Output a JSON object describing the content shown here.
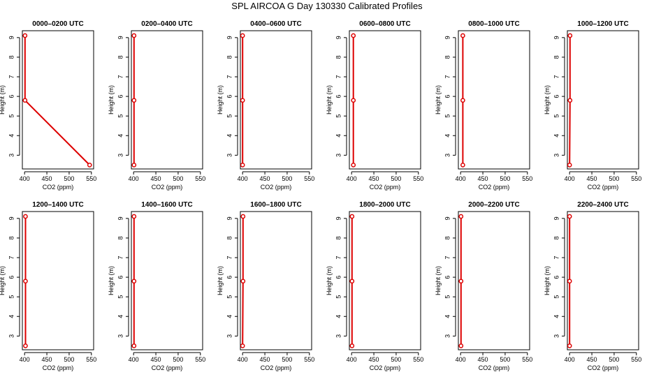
{
  "title": "SPL AIRCOA G  Day 130330  Calibrated Profiles",
  "colors": {
    "line": "#dd0000",
    "axis": "#000000"
  },
  "chart_data": [
    {
      "type": "line",
      "title": "0000–0200 UTC",
      "xlabel": "CO2 (ppm)",
      "ylabel": "Height (m)",
      "xlim": [
        395,
        555
      ],
      "ylim": [
        2.3,
        9.35
      ],
      "xticks": [
        400,
        450,
        500,
        550
      ],
      "yticks": [
        3,
        4,
        5,
        6,
        7,
        8,
        9
      ],
      "series": [
        {
          "x": [
            546,
            401,
            401
          ],
          "y": [
            2.5,
            5.8,
            9.1
          ]
        }
      ]
    },
    {
      "type": "line",
      "title": "0200–0400 UTC",
      "xlabel": "CO2 (ppm)",
      "ylabel": "Height (m)",
      "xlim": [
        395,
        555
      ],
      "ylim": [
        2.3,
        9.35
      ],
      "xticks": [
        400,
        450,
        500,
        550
      ],
      "yticks": [
        3,
        4,
        5,
        6,
        7,
        8,
        9
      ],
      "series": [
        {
          "x": [
            401,
            401,
            401
          ],
          "y": [
            2.5,
            5.8,
            9.1
          ]
        }
      ]
    },
    {
      "type": "line",
      "title": "0400–0600 UTC",
      "xlabel": "CO2 (ppm)",
      "ylabel": "Height (m)",
      "xlim": [
        395,
        555
      ],
      "ylim": [
        2.3,
        9.35
      ],
      "xticks": [
        400,
        450,
        500,
        550
      ],
      "yticks": [
        3,
        4,
        5,
        6,
        7,
        8,
        9
      ],
      "series": [
        {
          "x": [
            400,
            400,
            400
          ],
          "y": [
            2.5,
            5.8,
            9.1
          ]
        }
      ]
    },
    {
      "type": "line",
      "title": "0600–0800 UTC",
      "xlabel": "CO2 (ppm)",
      "ylabel": "Height (m)",
      "xlim": [
        395,
        555
      ],
      "ylim": [
        2.3,
        9.35
      ],
      "xticks": [
        400,
        450,
        500,
        550
      ],
      "yticks": [
        3,
        4,
        5,
        6,
        7,
        8,
        9
      ],
      "series": [
        {
          "x": [
            404,
            404,
            404
          ],
          "y": [
            2.5,
            5.8,
            9.1
          ]
        }
      ]
    },
    {
      "type": "line",
      "title": "0800–1000 UTC",
      "xlabel": "CO2 (ppm)",
      "ylabel": "Height (m)",
      "xlim": [
        395,
        555
      ],
      "ylim": [
        2.3,
        9.35
      ],
      "xticks": [
        400,
        450,
        500,
        550
      ],
      "yticks": [
        3,
        4,
        5,
        6,
        7,
        8,
        9
      ],
      "series": [
        {
          "x": [
            405,
            405,
            405
          ],
          "y": [
            2.5,
            5.8,
            9.1
          ]
        }
      ]
    },
    {
      "type": "line",
      "title": "1000–1200 UTC",
      "xlabel": "CO2 (ppm)",
      "ylabel": "Height (m)",
      "xlim": [
        395,
        555
      ],
      "ylim": [
        2.3,
        9.35
      ],
      "xticks": [
        400,
        450,
        500,
        550
      ],
      "yticks": [
        3,
        4,
        5,
        6,
        7,
        8,
        9
      ],
      "series": [
        {
          "x": [
            400,
            401,
            401
          ],
          "y": [
            2.5,
            5.8,
            9.1
          ]
        }
      ]
    },
    {
      "type": "line",
      "title": "1200–1400 UTC",
      "xlabel": "CO2 (ppm)",
      "ylabel": "Height (m)",
      "xlim": [
        395,
        555
      ],
      "ylim": [
        2.3,
        9.35
      ],
      "xticks": [
        400,
        450,
        500,
        550
      ],
      "yticks": [
        3,
        4,
        5,
        6,
        7,
        8,
        9
      ],
      "series": [
        {
          "x": [
            402,
            402,
            402
          ],
          "y": [
            2.5,
            5.8,
            9.1
          ]
        }
      ]
    },
    {
      "type": "line",
      "title": "1400–1600 UTC",
      "xlabel": "CO2 (ppm)",
      "ylabel": "Height (m)",
      "xlim": [
        395,
        555
      ],
      "ylim": [
        2.3,
        9.35
      ],
      "xticks": [
        400,
        450,
        500,
        550
      ],
      "yticks": [
        3,
        4,
        5,
        6,
        7,
        8,
        9
      ],
      "series": [
        {
          "x": [
            401,
            401,
            401
          ],
          "y": [
            2.5,
            5.8,
            9.1
          ]
        }
      ]
    },
    {
      "type": "line",
      "title": "1600–1800 UTC",
      "xlabel": "CO2 (ppm)",
      "ylabel": "Height (m)",
      "xlim": [
        395,
        555
      ],
      "ylim": [
        2.3,
        9.35
      ],
      "xticks": [
        400,
        450,
        500,
        550
      ],
      "yticks": [
        3,
        4,
        5,
        6,
        7,
        8,
        9
      ],
      "series": [
        {
          "x": [
            400,
            401,
            401
          ],
          "y": [
            2.5,
            5.8,
            9.1
          ]
        }
      ]
    },
    {
      "type": "line",
      "title": "1800–2000 UTC",
      "xlabel": "CO2 (ppm)",
      "ylabel": "Height (m)",
      "xlim": [
        395,
        555
      ],
      "ylim": [
        2.3,
        9.35
      ],
      "xticks": [
        400,
        450,
        500,
        550
      ],
      "yticks": [
        3,
        4,
        5,
        6,
        7,
        8,
        9
      ],
      "series": [
        {
          "x": [
            401,
            401,
            401
          ],
          "y": [
            2.5,
            5.8,
            9.1
          ]
        }
      ]
    },
    {
      "type": "line",
      "title": "2000–2200 UTC",
      "xlabel": "CO2 (ppm)",
      "ylabel": "Height (m)",
      "xlim": [
        395,
        555
      ],
      "ylim": [
        2.3,
        9.35
      ],
      "xticks": [
        400,
        450,
        500,
        550
      ],
      "yticks": [
        3,
        4,
        5,
        6,
        7,
        8,
        9
      ],
      "series": [
        {
          "x": [
            401,
            401,
            401
          ],
          "y": [
            2.5,
            5.8,
            9.1
          ]
        }
      ]
    },
    {
      "type": "line",
      "title": "2200–2400 UTC",
      "xlabel": "CO2 (ppm)",
      "ylabel": "Height (m)",
      "xlim": [
        395,
        555
      ],
      "ylim": [
        2.3,
        9.35
      ],
      "xticks": [
        400,
        450,
        500,
        550
      ],
      "yticks": [
        3,
        4,
        5,
        6,
        7,
        8,
        9
      ],
      "series": [
        {
          "x": [
            400,
            400,
            400
          ],
          "y": [
            2.5,
            5.8,
            9.1
          ]
        }
      ]
    }
  ]
}
